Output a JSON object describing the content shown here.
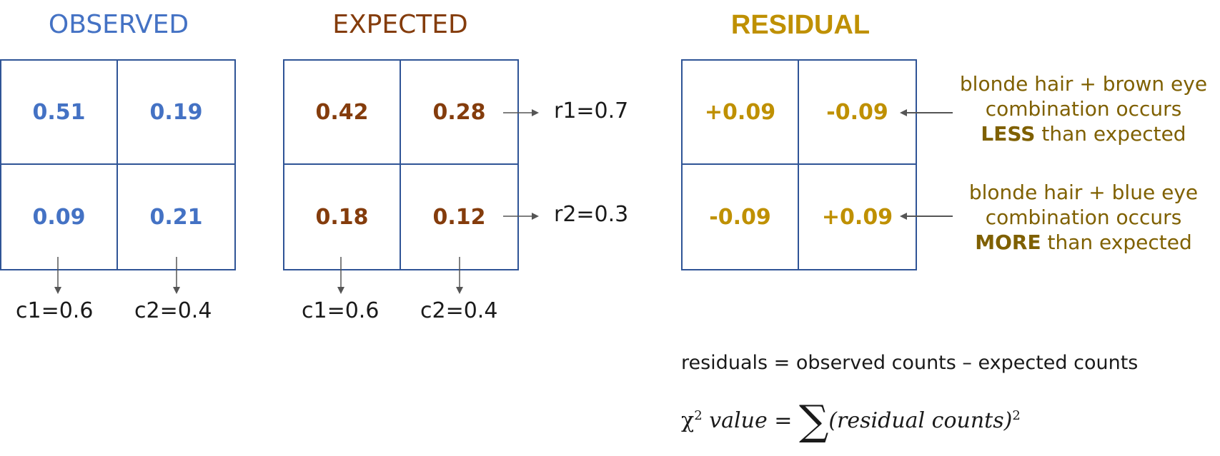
{
  "observed": {
    "title": "OBSERVED",
    "cells": [
      [
        "0.51",
        "0.19"
      ],
      [
        "0.09",
        "0.21"
      ]
    ],
    "col_marginals": [
      "c1=0.6",
      "c2=0.4"
    ]
  },
  "expected": {
    "title": "EXPECTED",
    "cells": [
      [
        "0.42",
        "0.28"
      ],
      [
        "0.18",
        "0.12"
      ]
    ],
    "row_marginals": [
      "r1=0.7",
      "r2=0.3"
    ],
    "col_marginals": [
      "c1=0.6",
      "c2=0.4"
    ]
  },
  "residual": {
    "title": "RESIDUAL",
    "cells": [
      [
        "+0.09",
        "-0.09"
      ],
      [
        "-0.09",
        "+0.09"
      ]
    ]
  },
  "notes": [
    {
      "line1": "blonde hair + brown eye",
      "line2": "combination occurs",
      "emphasis": "LESS",
      "rest": " than expected"
    },
    {
      "line1": "blonde hair + blue eye",
      "line2": "combination occurs",
      "emphasis": "MORE",
      "rest": " than expected"
    }
  ],
  "formulas": {
    "residuals": "residuals = observed counts – expected counts",
    "chi_symbol": "χ",
    "chi_sup": "2",
    "chi_value": "value",
    "equals": "=",
    "sum": "∑",
    "term": "(residual counts)",
    "term_sup": "2"
  },
  "colors": {
    "observed": "#4472c4",
    "expected": "#843c0c",
    "residual": "#bf9000",
    "note": "#7f6000",
    "grid_border": "#2f5496"
  }
}
